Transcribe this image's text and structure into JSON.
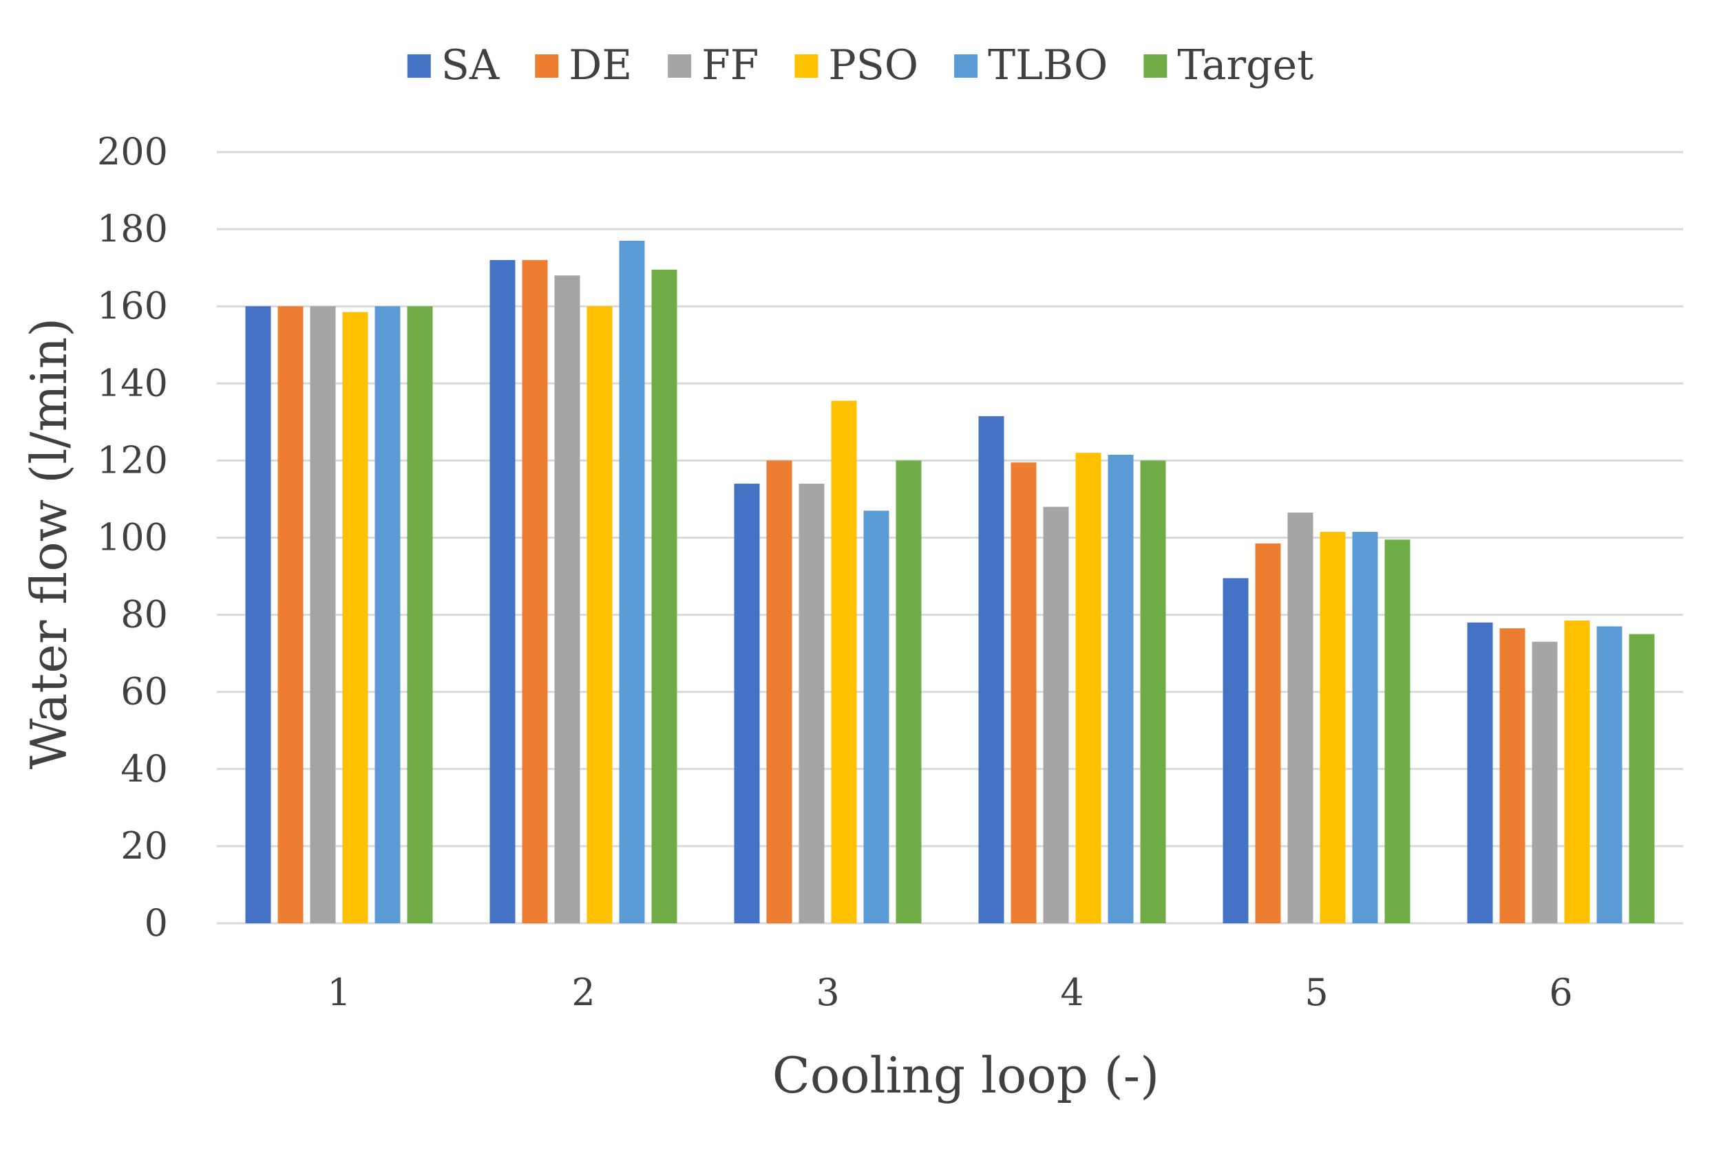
{
  "chart_data": {
    "type": "bar",
    "title": "",
    "xlabel": "Cooling loop (-)",
    "ylabel": "Water flow (l/min)",
    "ylim": [
      0,
      200
    ],
    "yticks": [
      "0",
      "20",
      "40",
      "60",
      "80",
      "100",
      "120",
      "140",
      "160",
      "180",
      "200"
    ],
    "grid": true,
    "legend_position": "top",
    "categories": [
      "1",
      "2",
      "3",
      "4",
      "5",
      "6"
    ],
    "series": [
      {
        "name": "SA",
        "color": "#4472c4",
        "values": [
          160,
          172,
          114,
          131.5,
          89.5,
          78
        ]
      },
      {
        "name": "DE",
        "color": "#ed7d31",
        "values": [
          160,
          172,
          120,
          119.5,
          98.5,
          76.5
        ]
      },
      {
        "name": "FF",
        "color": "#a5a5a5",
        "values": [
          160,
          168,
          114,
          108,
          106.5,
          73
        ]
      },
      {
        "name": "PSO",
        "color": "#ffc000",
        "values": [
          158.5,
          160,
          135.5,
          122,
          101.5,
          78.5
        ]
      },
      {
        "name": "TLBO",
        "color": "#5b9bd5",
        "values": [
          160,
          177,
          107,
          121.5,
          101.5,
          77
        ]
      },
      {
        "name": "Target",
        "color": "#70ad47",
        "values": [
          160,
          169.5,
          120,
          120,
          99.5,
          75
        ]
      }
    ]
  }
}
